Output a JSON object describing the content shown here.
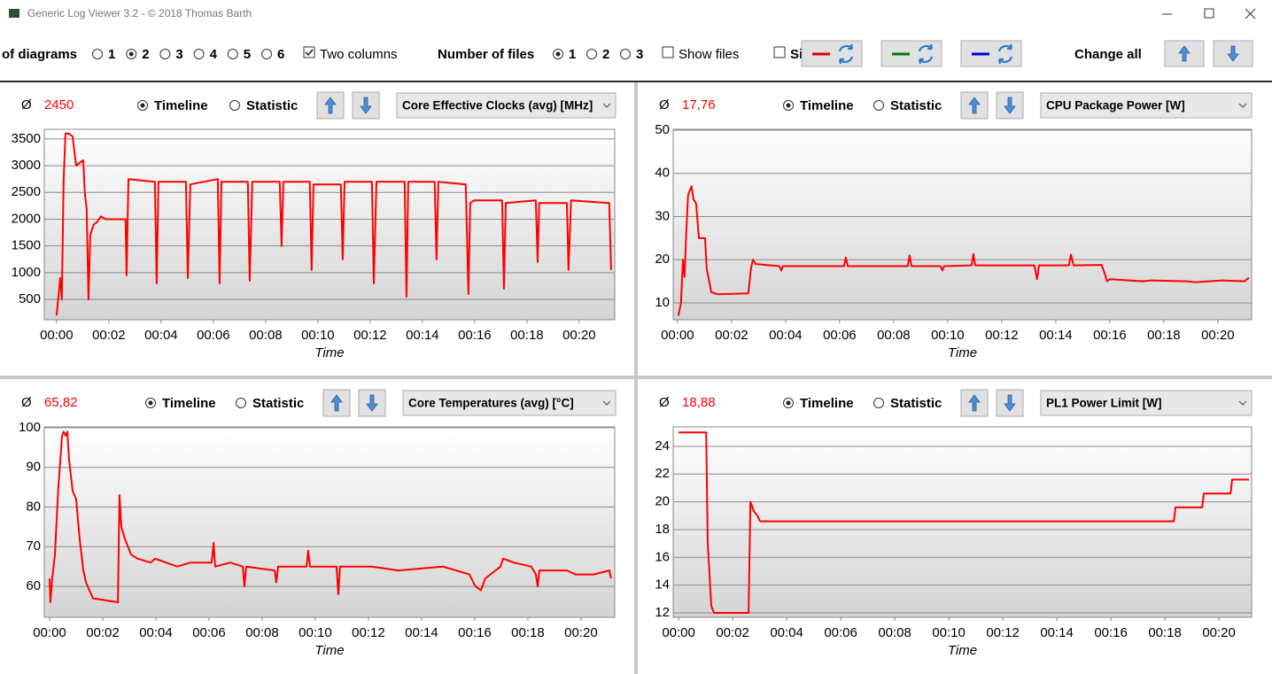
{
  "window": {
    "title": "Generic Log Viewer 3.2 - © 2018 Thomas Barth"
  },
  "toolbar": {
    "diagrams_label": "of diagrams",
    "diagram_options": [
      "1",
      "2",
      "3",
      "4",
      "5",
      "6"
    ],
    "diagrams_checked": 1,
    "two_columns": "Two columns",
    "two_columns_checked": true,
    "files_label": "Number of files",
    "file_options": [
      "1",
      "2",
      "3"
    ],
    "files_checked": 0,
    "show_files": "Show files",
    "show_files_checked": false,
    "clipped_option": "Si",
    "clipped_checked": false,
    "file_colors": [
      "#e00000",
      "#008000",
      "#0000e0"
    ],
    "change_all": "Change all"
  },
  "chart_data": [
    {
      "type": "line",
      "average_symbol": "Ø",
      "average": "2450",
      "timeline": "Timeline",
      "statistic": "Statistic",
      "timeline_checked": true,
      "selector": "Core Effective Clocks (avg) [MHz]",
      "xlabel": "Time",
      "color": "#ff0000",
      "grid": true,
      "xlim": [
        -0.47,
        21.36
      ],
      "ylim": [
        120,
        3680
      ],
      "yticks": [
        500,
        1000,
        1500,
        2000,
        2500,
        3000,
        3500
      ],
      "xticks": [
        {
          "value": 0,
          "label": "00:00"
        },
        {
          "value": 2,
          "label": "00:02"
        },
        {
          "value": 4,
          "label": "00:04"
        },
        {
          "value": 6,
          "label": "00:06"
        },
        {
          "value": 8,
          "label": "00:08"
        },
        {
          "value": 10,
          "label": "00:10"
        },
        {
          "value": 12,
          "label": "00:12"
        },
        {
          "value": 14,
          "label": "00:14"
        },
        {
          "value": 16,
          "label": "00:16"
        },
        {
          "value": 18,
          "label": "00:18"
        },
        {
          "value": 20,
          "label": "00:20"
        }
      ],
      "x": [
        0,
        0.14,
        0.2,
        0.27,
        0.34,
        0.47,
        0.61,
        0.75,
        0.88,
        1.02,
        1.08,
        1.15,
        1.22,
        1.29,
        1.42,
        1.56,
        1.69,
        1.9,
        2.64,
        2.68,
        2.75,
        3.76,
        3.83,
        3.9,
        4.95,
        5.02,
        5.12,
        6.17,
        6.24,
        6.31,
        7.32,
        7.39,
        7.49,
        8.54,
        8.61,
        8.68,
        9.69,
        9.76,
        9.83,
        10.88,
        10.95,
        11.02,
        12.07,
        12.14,
        12.24,
        13.32,
        13.39,
        13.46,
        14.47,
        14.54,
        14.61,
        15.66,
        15.76,
        15.83,
        15.97,
        17.05,
        17.12,
        17.19,
        18.34,
        18.41,
        18.47,
        19.53,
        19.59,
        19.69,
        21.15,
        21.22
      ],
      "values": [
        200,
        900,
        500,
        2700,
        3600,
        3600,
        3550,
        3000,
        3050,
        3100,
        2500,
        2200,
        500,
        1700,
        1900,
        1950,
        2050,
        2000,
        2000,
        950,
        2750,
        2700,
        800,
        2700,
        2700,
        900,
        2650,
        2750,
        800,
        2700,
        2700,
        850,
        2700,
        2700,
        1500,
        2700,
        2700,
        1050,
        2650,
        2650,
        1250,
        2700,
        2700,
        800,
        2700,
        2700,
        550,
        2700,
        2700,
        1250,
        2700,
        2650,
        600,
        2300,
        2350,
        2350,
        700,
        2300,
        2350,
        1200,
        2300,
        2300,
        1050,
        2350,
        2300,
        1050
      ]
    },
    {
      "type": "line",
      "average_symbol": "Ø",
      "average": "17,76",
      "timeline": "Timeline",
      "statistic": "Statistic",
      "timeline_checked": true,
      "selector": "CPU Package Power [W]",
      "xlabel": "Time",
      "color": "#ff0000",
      "grid": true,
      "xlim": [
        -0.16,
        21.25
      ],
      "ylim": [
        6.1,
        50.2
      ],
      "yticks": [
        10,
        20,
        30,
        40,
        50
      ],
      "xticks": [
        {
          "value": 0,
          "label": "00:00"
        },
        {
          "value": 2,
          "label": "00:02"
        },
        {
          "value": 4,
          "label": "00:04"
        },
        {
          "value": 6,
          "label": "00:06"
        },
        {
          "value": 8,
          "label": "00:08"
        },
        {
          "value": 10,
          "label": "00:10"
        },
        {
          "value": 12,
          "label": "00:12"
        },
        {
          "value": 14,
          "label": "00:14"
        },
        {
          "value": 16,
          "label": "00:16"
        },
        {
          "value": 18,
          "label": "00:18"
        },
        {
          "value": 20,
          "label": "00:20"
        }
      ],
      "x": [
        0.03,
        0.13,
        0.2,
        0.26,
        0.33,
        0.39,
        0.52,
        0.59,
        0.69,
        0.79,
        1.02,
        1.08,
        1.25,
        1.48,
        2.62,
        2.72,
        2.79,
        2.89,
        3.77,
        3.84,
        3.9,
        6.16,
        6.23,
        6.3,
        8.52,
        8.59,
        8.66,
        9.74,
        9.8,
        9.87,
        10.89,
        10.95,
        11.02,
        13.21,
        13.31,
        13.38,
        14.49,
        14.56,
        14.66,
        15.7,
        15.8,
        15.9,
        16,
        17.21,
        17.54,
        18.85,
        19.18,
        20.16,
        20.98,
        21.15
      ],
      "values": [
        7,
        10,
        20,
        16,
        27,
        35,
        37,
        34,
        33,
        25,
        25,
        18,
        12.5,
        12,
        12.2,
        18,
        20,
        19,
        18.5,
        17.5,
        18.5,
        18.5,
        20.5,
        18.5,
        18.5,
        21,
        18.5,
        18.5,
        17.5,
        18.5,
        18.7,
        21.3,
        18.7,
        18.7,
        15.5,
        18.7,
        18.7,
        21.2,
        18.7,
        18.8,
        17,
        15,
        15.5,
        15,
        15.2,
        15,
        14.8,
        15.2,
        15,
        15.8
      ]
    },
    {
      "type": "line",
      "average_symbol": "Ø",
      "average": "65,82",
      "timeline": "Timeline",
      "statistic": "Statistic",
      "timeline_checked": true,
      "selector": "Core Temperatures (avg) [°C]",
      "xlabel": "Time",
      "color": "#ff0000",
      "grid": true,
      "xlim": [
        -0.2,
        21.27
      ],
      "ylim": [
        52.2,
        100.2
      ],
      "yticks": [
        60,
        70,
        80,
        90,
        100
      ],
      "xticks": [
        {
          "value": 0,
          "label": "00:00"
        },
        {
          "value": 2,
          "label": "00:02"
        },
        {
          "value": 4,
          "label": "00:04"
        },
        {
          "value": 6,
          "label": "00:06"
        },
        {
          "value": 8,
          "label": "00:08"
        },
        {
          "value": 10,
          "label": "00:10"
        },
        {
          "value": 12,
          "label": "00:12"
        },
        {
          "value": 14,
          "label": "00:14"
        },
        {
          "value": 16,
          "label": "00:16"
        },
        {
          "value": 18,
          "label": "00:18"
        },
        {
          "value": 20,
          "label": "00:20"
        }
      ],
      "x": [
        0,
        0.03,
        0.1,
        0.2,
        0.33,
        0.47,
        0.53,
        0.6,
        0.67,
        0.73,
        0.87,
        1,
        1.13,
        1.27,
        1.37,
        1.63,
        2.57,
        2.63,
        2.7,
        2.83,
        3.07,
        3.3,
        3.8,
        3.97,
        4.8,
        5.3,
        6.1,
        6.17,
        6.23,
        6.8,
        7.27,
        7.33,
        7.4,
        8.47,
        8.53,
        8.6,
        9.67,
        9.73,
        9.8,
        10.8,
        10.87,
        10.93,
        12.13,
        13.13,
        14.8,
        15.8,
        16.03,
        16.23,
        16.4,
        16.97,
        17.07,
        17.47,
        18.13,
        18.3,
        18.37,
        18.43,
        19.47,
        19.8,
        20.47,
        21.07,
        21.13
      ],
      "values": [
        62,
        56,
        62,
        68,
        85,
        98,
        99,
        98,
        99,
        92,
        84,
        82,
        72,
        64,
        61,
        57,
        56,
        83,
        75,
        72,
        68,
        67,
        66,
        67,
        65,
        66,
        66,
        71,
        65,
        66,
        65,
        60,
        65,
        64,
        61,
        65,
        65,
        69,
        65,
        65,
        58,
        65,
        65,
        64,
        65,
        63,
        60,
        59,
        62,
        65,
        67,
        66,
        65,
        63,
        60,
        64,
        64,
        63,
        63,
        64,
        62
      ]
    },
    {
      "type": "line",
      "average_symbol": "Ø",
      "average": "18,88",
      "timeline": "Timeline",
      "statistic": "Statistic",
      "timeline_checked": true,
      "selector": "PL1 Power Limit [W]",
      "xlabel": "Time",
      "color": "#ff0000",
      "grid": true,
      "xlim": [
        -0.2,
        21.21
      ],
      "ylim": [
        11.68,
        25.4
      ],
      "yticks": [
        12,
        14,
        16,
        18,
        20,
        22,
        24
      ],
      "xticks": [
        {
          "value": 0,
          "label": "00:00"
        },
        {
          "value": 2,
          "label": "00:02"
        },
        {
          "value": 4,
          "label": "00:04"
        },
        {
          "value": 6,
          "label": "00:06"
        },
        {
          "value": 8,
          "label": "00:08"
        },
        {
          "value": 10,
          "label": "00:10"
        },
        {
          "value": 12,
          "label": "00:12"
        },
        {
          "value": 14,
          "label": "00:14"
        },
        {
          "value": 16,
          "label": "00:16"
        },
        {
          "value": 18,
          "label": "00:18"
        },
        {
          "value": 20,
          "label": "00:20"
        }
      ],
      "x": [
        0,
        1.02,
        1.08,
        1.21,
        1.31,
        2.59,
        2.66,
        2.79,
        2.92,
        3.02,
        18.33,
        18.39,
        19.38,
        19.44,
        20.43,
        20.49,
        21.11
      ],
      "values": [
        25,
        25,
        17,
        12.5,
        12,
        12,
        20,
        19.3,
        19,
        18.6,
        18.6,
        19.6,
        19.6,
        20.6,
        20.6,
        21.6,
        21.6
      ]
    }
  ]
}
